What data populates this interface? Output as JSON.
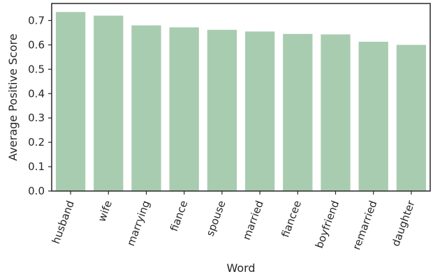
{
  "chart_data": {
    "type": "bar",
    "title": "",
    "xlabel": "Word",
    "ylabel": "Average Positive Score",
    "categories": [
      "husband",
      "wife",
      "marrying",
      "fiance",
      "spouse",
      "married",
      "fiancee",
      "boyfriend",
      "remarried",
      "daughter"
    ],
    "values": [
      0.735,
      0.72,
      0.68,
      0.672,
      0.662,
      0.655,
      0.645,
      0.643,
      0.613,
      0.6
    ],
    "ylim": [
      0,
      0.77
    ],
    "yticks": [
      "0.0",
      "0.1",
      "0.2",
      "0.3",
      "0.4",
      "0.5",
      "0.6",
      "0.7"
    ],
    "grid": false,
    "bar_color": "#a8ccb0",
    "frame_color": "#262626"
  }
}
